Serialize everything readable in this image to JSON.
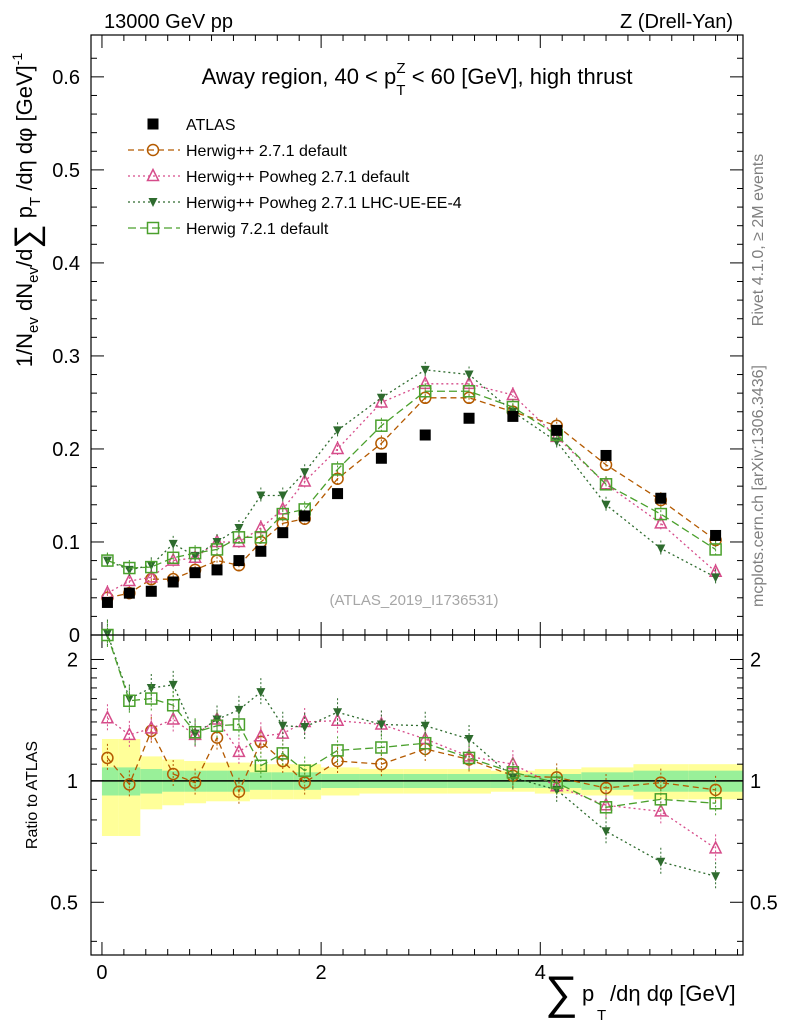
{
  "header": {
    "left": "13000 GeV pp",
    "right": "Z (Drell-Yan)"
  },
  "side_labels": {
    "rivet": "Rivet 4.1.0, ≥ 2M events",
    "mcplots": "mcplots.cern.ch [arXiv:1306.3436]"
  },
  "chart_data": [
    {
      "type": "scatter",
      "title": "Away region, 40 < p_T^Z < 60 [GeV], high thrust",
      "ylabel": "1/N_ev dN_ev/d∑p_T/dη dφ [GeV]^-1",
      "xlabel": "∑p_T/dη dφ [GeV]",
      "xlim": [
        -0.1,
        5.85
      ],
      "ylim": [
        0,
        0.645
      ],
      "y_ticks": [
        "0",
        "0.1",
        "0.2",
        "0.3",
        "0.4",
        "0.5",
        "0.6"
      ],
      "analysis_id": "(ATLAS_2019_I1736531)",
      "x": [
        0.05,
        0.25,
        0.45,
        0.65,
        0.85,
        1.05,
        1.25,
        1.45,
        1.65,
        1.85,
        2.15,
        2.55,
        2.95,
        3.35,
        3.75,
        4.15,
        4.6,
        5.1,
        5.6
      ],
      "series": [
        {
          "name": "ATLAS",
          "color": "#000000",
          "marker": "filled-square",
          "values": [
            0.035,
            0.045,
            0.047,
            0.057,
            0.067,
            0.07,
            0.08,
            0.09,
            0.11,
            0.128,
            0.152,
            0.19,
            0.215,
            0.233,
            0.235,
            0.22,
            0.193,
            0.147,
            0.107
          ]
        },
        {
          "name": "Herwig++ 2.7.1 default",
          "color": "#b45a00",
          "marker": "open-circle",
          "dash": "6,4",
          "values": [
            0.04,
            0.045,
            0.06,
            0.06,
            0.07,
            0.08,
            0.075,
            0.1,
            0.12,
            0.125,
            0.168,
            0.206,
            0.255,
            0.255,
            0.24,
            0.225,
            0.183,
            0.145,
            0.102
          ]
        },
        {
          "name": "Herwig++ Powheg 2.7.1 default",
          "color": "#d64c8a",
          "marker": "open-triangle",
          "dash": "2,3",
          "values": [
            0.045,
            0.058,
            0.062,
            0.08,
            0.083,
            0.1,
            0.1,
            0.115,
            0.135,
            0.165,
            0.2,
            0.25,
            0.27,
            0.27,
            0.258,
            0.213,
            0.162,
            0.12,
            0.068
          ]
        },
        {
          "name": "Herwig++ Powheg 2.7.1 LHC-UE-EE-4",
          "color": "#2e6b2e",
          "marker": "filled-triangle-down",
          "dash": "2,3",
          "values": [
            0.08,
            0.07,
            0.075,
            0.098,
            0.085,
            0.1,
            0.115,
            0.15,
            0.15,
            0.175,
            0.22,
            0.255,
            0.285,
            0.28,
            0.24,
            0.208,
            0.14,
            0.093,
            0.062
          ]
        },
        {
          "name": "Herwig 7.2.1 default",
          "color": "#4aa02c",
          "marker": "open-square",
          "dash": "8,4",
          "values": [
            0.08,
            0.072,
            0.073,
            0.083,
            0.088,
            0.092,
            0.105,
            0.105,
            0.13,
            0.135,
            0.178,
            0.225,
            0.262,
            0.262,
            0.245,
            0.215,
            0.162,
            0.13,
            0.092
          ]
        }
      ]
    },
    {
      "type": "scatter",
      "title": "",
      "ylabel": "Ratio to ATLAS",
      "xlabel": "",
      "xlim": [
        -0.1,
        5.85
      ],
      "ylim": [
        0.37,
        2.3
      ],
      "y_ticks": [
        "0.5",
        "1",
        "2"
      ],
      "x_ticks": [
        "0",
        "2",
        "4"
      ],
      "band_inner_halfwidth": [
        0.08,
        0.08,
        0.07,
        0.06,
        0.06,
        0.06,
        0.06,
        0.05,
        0.05,
        0.05,
        0.04,
        0.04,
        0.04,
        0.04,
        0.04,
        0.04,
        0.05,
        0.06,
        0.06
      ],
      "band_outer_halfwidth": [
        0.27,
        0.27,
        0.15,
        0.13,
        0.12,
        0.11,
        0.11,
        0.1,
        0.1,
        0.1,
        0.08,
        0.07,
        0.07,
        0.07,
        0.06,
        0.07,
        0.08,
        0.1,
        0.1
      ],
      "series": [
        {
          "name": "Herwig++ 2.7.1 default",
          "values": [
            1.14,
            0.98,
            1.33,
            1.04,
            0.99,
            1.28,
            0.94,
            1.25,
            1.12,
            0.99,
            1.12,
            1.1,
            1.2,
            1.13,
            1.03,
            1.02,
            0.96,
            0.99,
            0.95
          ]
        },
        {
          "name": "Herwig++ Powheg 2.7.1 default",
          "values": [
            1.43,
            1.3,
            1.35,
            1.42,
            1.3,
            1.42,
            1.18,
            1.29,
            1.31,
            1.4,
            1.41,
            1.38,
            1.27,
            1.15,
            1.1,
            0.97,
            0.87,
            0.84,
            0.68
          ]
        },
        {
          "name": "Herwig++ Powheg 2.7.1 LHC-UE-EE-4",
          "values": [
            2.32,
            1.6,
            1.7,
            1.73,
            1.31,
            1.42,
            1.5,
            1.66,
            1.37,
            1.36,
            1.48,
            1.38,
            1.37,
            1.27,
            1.02,
            0.95,
            0.75,
            0.63,
            0.58
          ]
        },
        {
          "name": "Herwig 7.2.1 default",
          "values": [
            2.3,
            1.58,
            1.6,
            1.54,
            1.32,
            1.37,
            1.38,
            1.09,
            1.17,
            1.06,
            1.19,
            1.21,
            1.24,
            1.14,
            1.05,
            0.99,
            0.86,
            0.9,
            0.88
          ]
        }
      ]
    }
  ]
}
